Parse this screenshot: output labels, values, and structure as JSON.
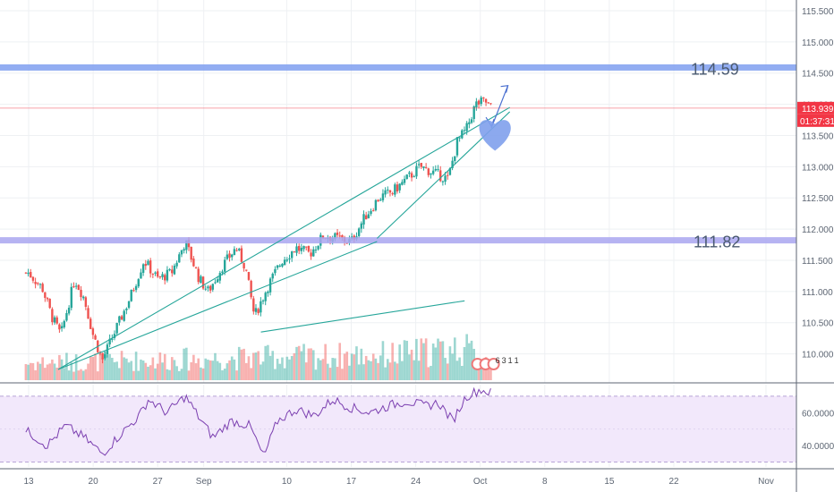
{
  "chart_data": {
    "type": "candlestick",
    "main_axis": {
      "ylim": [
        109.75,
        115.6
      ],
      "ticks": [
        "115.500",
        "115.000",
        "114.500",
        "114.000",
        "113.500",
        "113.000",
        "112.500",
        "112.000",
        "111.500",
        "111.000",
        "110.500",
        "110.000"
      ],
      "tick_values": [
        115.5,
        115.0,
        114.5,
        114.0,
        113.5,
        113.0,
        112.5,
        112.0,
        111.5,
        111.0,
        110.5,
        110.0
      ]
    },
    "x_axis": {
      "ticks": [
        "13",
        "20",
        "27",
        "Sep",
        "10",
        "17",
        "24",
        "Oct",
        "8",
        "15",
        "22",
        "Nov"
      ],
      "tick_days": [
        0,
        7,
        14,
        19,
        28,
        35,
        42,
        49,
        56,
        63,
        70,
        80
      ],
      "last_bar_day": 50.2
    },
    "horizontal_levels": [
      {
        "label": "114.59",
        "value": 114.59,
        "color": "#7f9ff0"
      },
      {
        "label": "111.82",
        "value": 111.82,
        "color": "#a9a6f0"
      }
    ],
    "current_price": {
      "value": 113.939,
      "label": "113.939",
      "countdown": "01:37:31",
      "color": "#f23645"
    },
    "trend_lines": [
      {
        "from": {
          "day": 3.2,
          "price": 109.75
        },
        "to": {
          "day": 37.8,
          "price": 111.8
        }
      },
      {
        "from": {
          "day": 37.8,
          "price": 111.85
        },
        "to": {
          "day": 52.2,
          "price": 113.88
        }
      },
      {
        "from": {
          "day": 3.2,
          "price": 109.75
        },
        "to": {
          "day": 52.2,
          "price": 113.95
        }
      },
      {
        "from": {
          "day": 25.2,
          "price": 110.35
        },
        "to": {
          "day": 47.3,
          "price": 110.85
        }
      }
    ],
    "arrow": {
      "from": {
        "day": 50.2,
        "price": 113.62
      },
      "to": {
        "day": 52.0,
        "price": 114.3
      }
    },
    "candle_anchors": [
      {
        "day": 0,
        "price": 111.3
      },
      {
        "day": 1.5,
        "price": 111.05
      },
      {
        "day": 2.5,
        "price": 110.6
      },
      {
        "day": 3.5,
        "price": 110.3
      },
      {
        "day": 5,
        "price": 111.2
      },
      {
        "day": 6,
        "price": 110.9
      },
      {
        "day": 7,
        "price": 110.3
      },
      {
        "day": 8,
        "price": 109.9
      },
      {
        "day": 9.5,
        "price": 110.4
      },
      {
        "day": 11,
        "price": 110.9
      },
      {
        "day": 12.5,
        "price": 111.5
      },
      {
        "day": 14,
        "price": 111.2
      },
      {
        "day": 15.5,
        "price": 111.3
      },
      {
        "day": 17,
        "price": 111.8
      },
      {
        "day": 18.5,
        "price": 111.2
      },
      {
        "day": 19.5,
        "price": 111.0
      },
      {
        "day": 21,
        "price": 111.4
      },
      {
        "day": 22.5,
        "price": 111.7
      },
      {
        "day": 23.5,
        "price": 111.4
      },
      {
        "day": 24.5,
        "price": 110.6
      },
      {
        "day": 26,
        "price": 111.1
      },
      {
        "day": 27.5,
        "price": 111.5
      },
      {
        "day": 29,
        "price": 111.7
      },
      {
        "day": 30.5,
        "price": 111.6
      },
      {
        "day": 32,
        "price": 111.9
      },
      {
        "day": 33.5,
        "price": 111.85
      },
      {
        "day": 35,
        "price": 111.8
      },
      {
        "day": 36.5,
        "price": 112.2
      },
      {
        "day": 38,
        "price": 112.5
      },
      {
        "day": 39.5,
        "price": 112.6
      },
      {
        "day": 41,
        "price": 112.8
      },
      {
        "day": 42.5,
        "price": 113.0
      },
      {
        "day": 44,
        "price": 112.9
      },
      {
        "day": 45.5,
        "price": 112.8
      },
      {
        "day": 46.5,
        "price": 113.4
      },
      {
        "day": 47.5,
        "price": 113.6
      },
      {
        "day": 48.5,
        "price": 114.0
      },
      {
        "day": 49.5,
        "price": 114.05
      },
      {
        "day": 50.2,
        "price": 113.94
      }
    ],
    "rsi": {
      "ticks": [
        "60.0000",
        "40.0000"
      ],
      "tick_values": [
        60,
        40
      ],
      "band": [
        30,
        70
      ],
      "ylim": [
        27,
        77
      ],
      "anchors": [
        {
          "day": 0,
          "price": 48
        },
        {
          "day": 2,
          "price": 40
        },
        {
          "day": 4,
          "price": 52
        },
        {
          "day": 6,
          "price": 45
        },
        {
          "day": 8,
          "price": 35
        },
        {
          "day": 10,
          "price": 47
        },
        {
          "day": 12,
          "price": 58
        },
        {
          "day": 13,
          "price": 68
        },
        {
          "day": 15,
          "price": 60
        },
        {
          "day": 17,
          "price": 70
        },
        {
          "day": 18.5,
          "price": 57
        },
        {
          "day": 20,
          "price": 45
        },
        {
          "day": 22,
          "price": 55
        },
        {
          "day": 24,
          "price": 52
        },
        {
          "day": 25.5,
          "price": 33
        },
        {
          "day": 27,
          "price": 55
        },
        {
          "day": 29,
          "price": 62
        },
        {
          "day": 31,
          "price": 58
        },
        {
          "day": 33,
          "price": 68
        },
        {
          "day": 35,
          "price": 63
        },
        {
          "day": 37,
          "price": 60
        },
        {
          "day": 39,
          "price": 64
        },
        {
          "day": 41,
          "price": 67
        },
        {
          "day": 43,
          "price": 64
        },
        {
          "day": 44.5,
          "price": 66
        },
        {
          "day": 46,
          "price": 55
        },
        {
          "day": 47.5,
          "price": 70
        },
        {
          "day": 49,
          "price": 74
        },
        {
          "day": 50.2,
          "price": 72
        }
      ]
    },
    "volume": {
      "profile": [
        {
          "day": 0,
          "level": 0.4
        },
        {
          "day": 10,
          "level": 0.45
        },
        {
          "day": 20,
          "level": 0.5
        },
        {
          "day": 30,
          "level": 0.55
        },
        {
          "day": 40,
          "level": 0.6
        },
        {
          "day": 47,
          "level": 0.75
        },
        {
          "day": 50,
          "level": 0.45
        }
      ]
    },
    "markers": [
      "6",
      "3",
      "1",
      "1"
    ]
  }
}
